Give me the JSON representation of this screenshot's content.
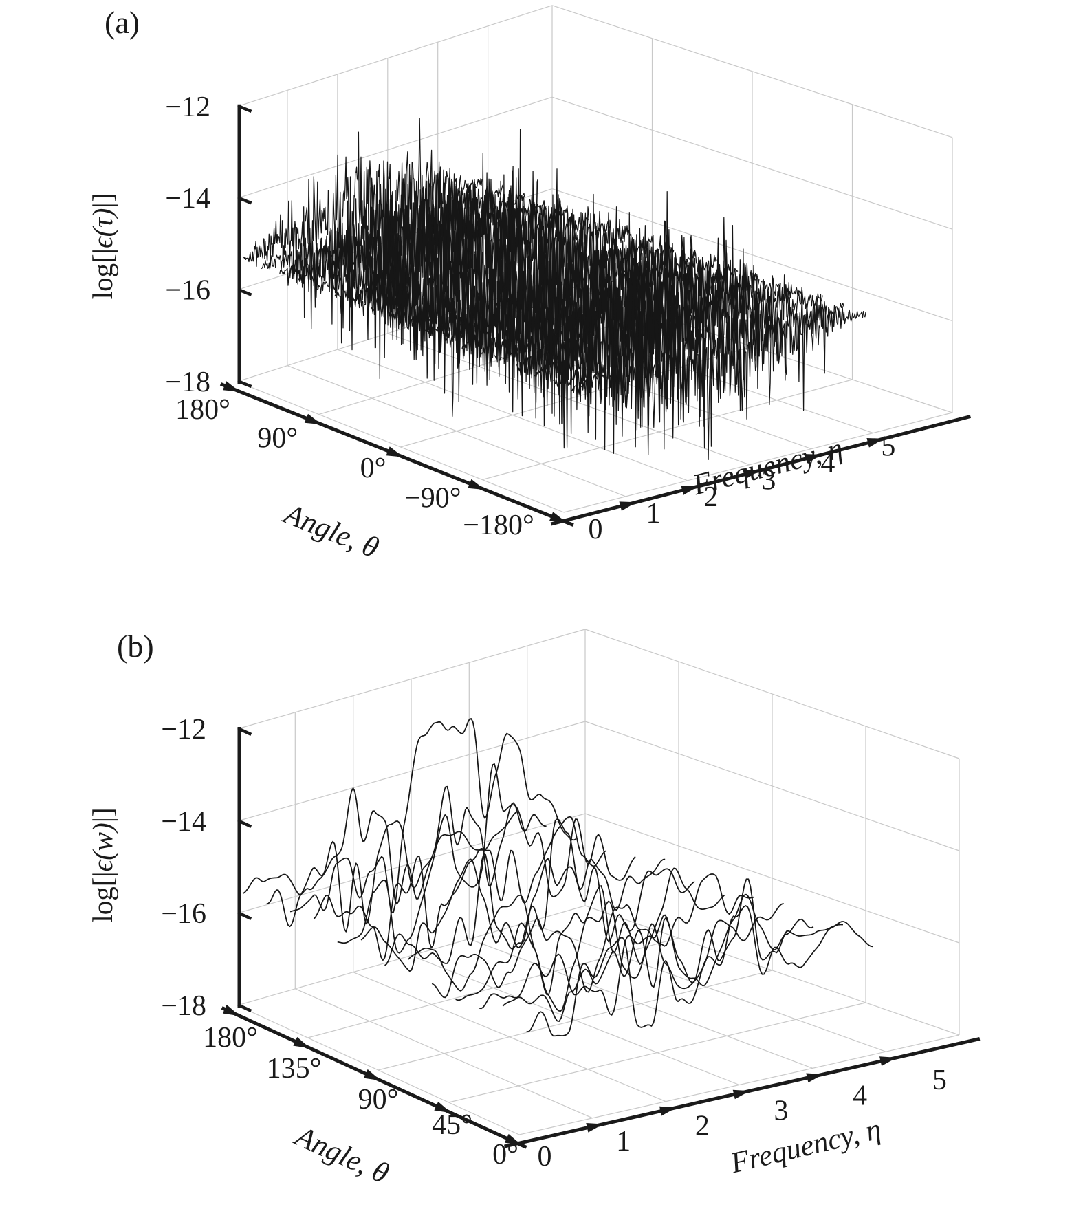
{
  "colors": {
    "background": "#ffffff",
    "trace": "#161616",
    "grid": "#c9c9c9",
    "axis": "#1a1a1a",
    "text": "#1a1a1a"
  },
  "panels": [
    {
      "tag": "(a)",
      "z_axis": {
        "label_prefix": "log[|",
        "label_var": "ϵ(τ)",
        "label_suffix": "|]",
        "ticks": [
          "−12",
          "−14",
          "−16",
          "−18"
        ]
      },
      "angle_axis": {
        "label": "Angle, θ",
        "ticks": [
          "180°",
          "90°",
          "0°",
          "−90°",
          "−180°"
        ]
      },
      "freq_axis": {
        "label": "Frequency, η",
        "ticks": [
          "0",
          "1",
          "2",
          "3",
          "4",
          "5"
        ]
      }
    },
    {
      "tag": "(b)",
      "z_axis": {
        "label_prefix": "log[|",
        "label_var": "ϵ(w)",
        "label_suffix": "|]",
        "ticks": [
          "−12",
          "−14",
          "−16",
          "−18"
        ]
      },
      "angle_axis": {
        "label": "Angle, θ",
        "ticks": [
          "180°",
          "135°",
          "90°",
          "45°",
          "0°"
        ]
      },
      "freq_axis": {
        "label": "Frequency, η",
        "ticks": [
          "0",
          "1",
          "2",
          "3",
          "4",
          "5"
        ]
      }
    }
  ],
  "chart_data": [
    {
      "type": "line",
      "subtype": "3d-waterfall-error-traces",
      "panel_tag": "(a)",
      "xlabel": "Frequency, η",
      "x_range": [
        0,
        6.28
      ],
      "x_ticks": [
        0,
        1,
        2,
        3,
        4,
        5
      ],
      "ylabel": "Angle, θ",
      "y_unit": "degrees",
      "y_range": [
        -180,
        180
      ],
      "y_ticks": [
        180,
        90,
        0,
        -90,
        -180
      ],
      "zlabel": "log[|ϵ(τ)|]",
      "z_range": [
        -18,
        -12
      ],
      "z_ticks": [
        -12,
        -14,
        -16,
        -18
      ],
      "grid": true,
      "legend": false,
      "series_spec": {
        "description": "one dense jagged noise trace per angle; error ~ -15.4 at both frequency ends, spread widening mid-band to roughly -18..-12.8",
        "n_traces": 19,
        "f_span": [
          0.12,
          4.88
        ],
        "points_per_trace": 380,
        "base_level": -15.35,
        "center_wobble": 0.55,
        "envelope": {
          "min": 0.15,
          "peak": 2.05,
          "exponent": 1.2
        },
        "noise": {
          "style": "jagged",
          "scale": 1.0,
          "down_spike_prob": 0.035,
          "down_spike_scale": 1.3,
          "up_spike_prob": 0.012,
          "up_spike_scale": 0.7
        },
        "z_clip": [
          -17.93,
          -12.15
        ],
        "seed": 1337
      }
    },
    {
      "type": "line",
      "subtype": "3d-waterfall-error-traces",
      "panel_tag": "(b)",
      "xlabel": "Frequency, η",
      "x_range": [
        0,
        6.0
      ],
      "x_ticks": [
        0,
        1,
        2,
        3,
        4,
        5
      ],
      "ylabel": "Angle, θ",
      "y_unit": "degrees",
      "y_range": [
        0,
        180
      ],
      "y_ticks": [
        180,
        135,
        90,
        45,
        0
      ],
      "zlabel": "log[|ϵ(w)|]",
      "z_range": [
        -18,
        -12
      ],
      "z_ticks": [
        -12,
        -14,
        -16,
        -18
      ],
      "grid": true,
      "legend": false,
      "series_spec": {
        "description": "smoother oscillating traces clustered near -15.5; two back traces ridge up to about -12.5 near frequency 3 with scalloped decay; a couple of traces dip toward -17.6",
        "n_traces": 13,
        "f_span": [
          0.1,
          4.82
        ],
        "points_per_trace": 170,
        "base_level": -15.55,
        "center_wobble": 0.5,
        "envelope": {
          "min": 0.3,
          "peak": 1.25,
          "exponent": 0.9
        },
        "noise": {
          "style": "smooth",
          "scale": 0.85,
          "knots": 26,
          "sin_cycles_min": 2.5,
          "sin_cycles_span": 2.0,
          "sin_amp": 0.55,
          "smooth_amp": 0.8
        },
        "dip_traces": [
          {
            "index": 3,
            "depth": 1.7,
            "center": 0.72,
            "width": 0.07
          },
          {
            "index": 6,
            "depth": 1.4,
            "center": 0.8,
            "width": 0.06
          }
        ],
        "ridge_traces": [
          {
            "index": 10,
            "amp": 3.05,
            "center_f": 3.05,
            "width_f": 1.05,
            "scallop_amp": 0.12,
            "scallop_freq": 9.0
          },
          {
            "index": 8,
            "amp": 2.0,
            "center_f": 2.65,
            "width_f": 0.95,
            "scallop_amp": 0.1,
            "scallop_freq": 8.0
          }
        ],
        "z_clip": [
          -17.9,
          -12.3
        ],
        "seed": 4242
      }
    }
  ]
}
